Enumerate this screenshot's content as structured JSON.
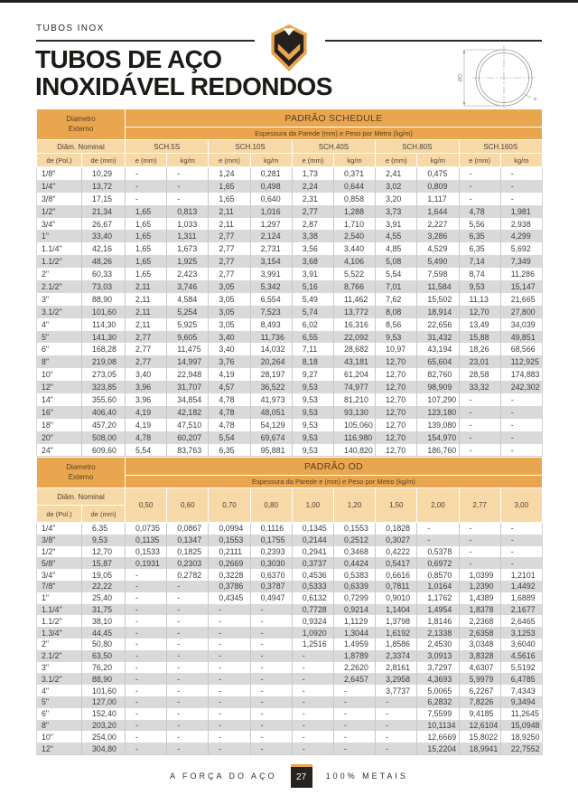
{
  "page": {
    "eyebrow": "TUBOS INOX",
    "title_line1": "TUBOS DE AÇO",
    "title_line2": "INOXIDÁVEL REDONDOS"
  },
  "diagram": {
    "diameter_label": "ØD",
    "thickness_label": "e"
  },
  "colors": {
    "accent_orange": "#E9A64F",
    "header_tan": "#F7D8A7",
    "row_stripe": "#D9D9D9",
    "dark": "#262320"
  },
  "schedule_table": {
    "title": "PADRÃO SCHEDULE",
    "subtitle": "Espessura da Parede (mm) e Peso por Metro (kg/m)",
    "corner_line1": "Diametro",
    "corner_line2": "Externo",
    "nominal_label": "Diâm. Nominal",
    "col_pol": "de (Pol.)",
    "col_mm": "de (mm)",
    "groups": [
      "SCH.5S",
      "SCH.10S",
      "SCH.40S",
      "SCH.80S",
      "SCH.160S"
    ],
    "sub_e": "e (mm)",
    "sub_kg": "kg/m",
    "rows": [
      [
        "1/8\"",
        "10,29",
        "-",
        "-",
        "1,24",
        "0,281",
        "1,73",
        "0,371",
        "2,41",
        "0,475",
        "-",
        "-"
      ],
      [
        "1/4\"",
        "13,72",
        "-",
        "-",
        "1,65",
        "0,498",
        "2,24",
        "0,644",
        "3,02",
        "0,809",
        "-",
        "-"
      ],
      [
        "3/8\"",
        "17,15",
        "-",
        "-",
        "1,65",
        "0,640",
        "2,31",
        "0,858",
        "3,20",
        "1,117",
        "-",
        "-"
      ],
      [
        "1/2\"",
        "21,34",
        "1,65",
        "0,813",
        "2,11",
        "1,016",
        "2,77",
        "1,288",
        "3,73",
        "1,644",
        "4,78",
        "1,981"
      ],
      [
        "3/4\"",
        "26,67",
        "1,65",
        "1,033",
        "2,11",
        "1,297",
        "2,87",
        "1,710",
        "3,91",
        "2,227",
        "5,56",
        "2,938"
      ],
      [
        "1\"",
        "33,40",
        "1,65",
        "1,311",
        "2,77",
        "2,124",
        "3,38",
        "2,540",
        "4,55",
        "3,286",
        "6,35",
        "4,299"
      ],
      [
        "1.1/4\"",
        "42,16",
        "1,65",
        "1,673",
        "2,77",
        "2,731",
        "3,56",
        "3,440",
        "4,85",
        "4,529",
        "6,35",
        "5,692"
      ],
      [
        "1.1/2\"",
        "48,26",
        "1,65",
        "1,925",
        "2,77",
        "3,154",
        "3,68",
        "4,106",
        "5,08",
        "5,490",
        "7,14",
        "7,349"
      ],
      [
        "2\"",
        "60,33",
        "1,65",
        "2,423",
        "2,77",
        "3,991",
        "3,91",
        "5,522",
        "5,54",
        "7,598",
        "8,74",
        "11,286"
      ],
      [
        "2.1/2\"",
        "73,03",
        "2,11",
        "3,746",
        "3,05",
        "5,342",
        "5,16",
        "8,766",
        "7,01",
        "11,584",
        "9,53",
        "15,147"
      ],
      [
        "3\"",
        "88,90",
        "2,11",
        "4,584",
        "3,05",
        "6,554",
        "5,49",
        "11,462",
        "7,62",
        "15,502",
        "11,13",
        "21,665"
      ],
      [
        "3.1/2\"",
        "101,60",
        "2,11",
        "5,254",
        "3,05",
        "7,523",
        "5,74",
        "13,772",
        "8,08",
        "18,914",
        "12,70",
        "27,800"
      ],
      [
        "4\"",
        "114,30",
        "2,11",
        "5,925",
        "3,05",
        "8,493",
        "6,02",
        "16,316",
        "8,56",
        "22,656",
        "13,49",
        "34,039"
      ],
      [
        "5\"",
        "141,30",
        "2,77",
        "9,605",
        "3,40",
        "11,736",
        "6,55",
        "22,092",
        "9,53",
        "31,432",
        "15,88",
        "49,851"
      ],
      [
        "6\"",
        "168,28",
        "2,77",
        "11,475",
        "3,40",
        "14,032",
        "7,11",
        "28,682",
        "10,97",
        "43,194",
        "18,26",
        "68,566"
      ],
      [
        "8\"",
        "219,08",
        "2,77",
        "14,997",
        "3,76",
        "20,264",
        "8,18",
        "43,181",
        "12,70",
        "65,604",
        "23,01",
        "112,925"
      ],
      [
        "10\"",
        "273,05",
        "3,40",
        "22,948",
        "4,19",
        "28,197",
        "9,27",
        "61,204",
        "12,70",
        "82,760",
        "28,58",
        "174,883"
      ],
      [
        "12\"",
        "323,85",
        "3,96",
        "31,707",
        "4,57",
        "36,522",
        "9,53",
        "74,977",
        "12,70",
        "98,909",
        "33,32",
        "242,302"
      ],
      [
        "14\"",
        "355,60",
        "3,96",
        "34,854",
        "4,78",
        "41,973",
        "9,53",
        "81,210",
        "12,70",
        "107,290",
        "-",
        "-"
      ],
      [
        "16\"",
        "406,40",
        "4,19",
        "42,182",
        "4,78",
        "48,051",
        "9,53",
        "93,130",
        "12,70",
        "123,180",
        "-",
        "-"
      ],
      [
        "18\"",
        "457,20",
        "4,19",
        "47,510",
        "4,78",
        "54,129",
        "9,53",
        "105,060",
        "12,70",
        "139,080",
        "-",
        "-"
      ],
      [
        "20\"",
        "508,00",
        "4,78",
        "60,207",
        "5,54",
        "69,674",
        "9,53",
        "116,980",
        "12,70",
        "154,970",
        "-",
        "-"
      ],
      [
        "24\"",
        "609,60",
        "5,54",
        "83,763",
        "6,35",
        "95,881",
        "9,53",
        "140,820",
        "12,70",
        "186,760",
        "-",
        "-"
      ]
    ]
  },
  "od_table": {
    "title": "PADRÃO OD",
    "subtitle": "Espessura da Parede e (mm) e Peso por Metro (kg/m)",
    "corner_line1": "Diametro",
    "corner_line2": "Externo",
    "nominal_label": "Diâm. Nominal",
    "col_pol": "de (Pol.)",
    "col_mm": "de (mm)",
    "thicknesses": [
      "0,50",
      "0,60",
      "0,70",
      "0,80",
      "1,00",
      "1,20",
      "1,50",
      "2,00",
      "2,77",
      "3,00"
    ],
    "rows": [
      [
        "1/4\"",
        "6,35",
        "0,0735",
        "0,0867",
        "0,0994",
        "0,1116",
        "0,1345",
        "0,1553",
        "0,1828",
        "-",
        "-",
        "-"
      ],
      [
        "3/8\"",
        "9,53",
        "0,1135",
        "0,1347",
        "0,1553",
        "0,1755",
        "0,2144",
        "0,2512",
        "0,3027",
        "-",
        "-",
        "-"
      ],
      [
        "1/2\"",
        "12,70",
        "0,1533",
        "0,1825",
        "0,2111",
        "0,2393",
        "0,2941",
        "0,3468",
        "0,4222",
        "0,5378",
        "-",
        "-"
      ],
      [
        "5/8\"",
        "15,87",
        "0,1931",
        "0,2303",
        "0,2669",
        "0,3030",
        "0,3737",
        "0,4424",
        "0,5417",
        "0,6972",
        "-",
        "-"
      ],
      [
        "3/4\"",
        "19,05",
        "-",
        "0,2782",
        "0,3228",
        "0,6370",
        "0,4536",
        "0,5383",
        "0,6616",
        "0,8570",
        "1,0399",
        "1,2101"
      ],
      [
        "7/8\"",
        "22,22",
        "-",
        "-",
        "0,3786",
        "0,3787",
        "0,5333",
        "0,6339",
        "0,7811",
        "1,0164",
        "1,2390",
        "1,4492"
      ],
      [
        "1\"",
        "25,40",
        "-",
        "-",
        "0,4345",
        "0,4947",
        "0,6132",
        "0,7299",
        "0,9010",
        "1,1762",
        "1,4389",
        "1,6889"
      ],
      [
        "1.1/4\"",
        "31,75",
        "-",
        "-",
        "-",
        "-",
        "0,7728",
        "0,9214",
        "1,1404",
        "1,4954",
        "1,8378",
        "2,1677"
      ],
      [
        "1.1/2\"",
        "38,10",
        "-",
        "-",
        "-",
        "-",
        "0,9324",
        "1,1129",
        "1,3798",
        "1,8146",
        "2,2368",
        "2,6465"
      ],
      [
        "1.3/4\"",
        "44,45",
        "-",
        "-",
        "-",
        "-",
        "1,0920",
        "1,3044",
        "1,6192",
        "2,1338",
        "2,6358",
        "3,1253"
      ],
      [
        "2\"",
        "50,80",
        "-",
        "-",
        "-",
        "-",
        "1,2516",
        "1,4959",
        "1,8586",
        "2,4530",
        "3,0348",
        "3,6040"
      ],
      [
        "2.1/2\"",
        "63,50",
        "-",
        "-",
        "-",
        "-",
        "-",
        "1,8789",
        "2,3374",
        "3,0913",
        "3,8328",
        "4,5616"
      ],
      [
        "3\"",
        "76,20",
        "-",
        "-",
        "-",
        "-",
        "-",
        "2,2620",
        "2,8161",
        "3,7297",
        "4,6307",
        "5,5192"
      ],
      [
        "3.1/2\"",
        "88,90",
        "-",
        "-",
        "-",
        "-",
        "-",
        "2,6457",
        "3,2958",
        "4,3693",
        "5,9979",
        "6,4785"
      ],
      [
        "4\"",
        "101,60",
        "-",
        "-",
        "-",
        "-",
        "-",
        "-",
        "3,7737",
        "5,0065",
        "6,2267",
        "7,4343"
      ],
      [
        "5\"",
        "127,00",
        "-",
        "-",
        "-",
        "-",
        "-",
        "-",
        "-",
        "6,2832",
        "7,8226",
        "9,3494"
      ],
      [
        "6\"",
        "152,40",
        "-",
        "-",
        "-",
        "-",
        "-",
        "-",
        "-",
        "7,5599",
        "9,4185",
        "11,2645"
      ],
      [
        "8\"",
        "203,20",
        "-",
        "-",
        "-",
        "-",
        "-",
        "-",
        "-",
        "10,1134",
        "12,6104",
        "15,0948"
      ],
      [
        "10\"",
        "254,00",
        "-",
        "-",
        "-",
        "-",
        "-",
        "-",
        "-",
        "12,6669",
        "15,8022",
        "18,9250"
      ],
      [
        "12\"",
        "304,80",
        "-",
        "-",
        "-",
        "-",
        "-",
        "-",
        "-",
        "15,2204",
        "18,9941",
        "22,7552"
      ]
    ]
  },
  "footer": {
    "left": "A FORÇA DO AÇO",
    "page_number": "27",
    "right": "100% METAIS"
  }
}
